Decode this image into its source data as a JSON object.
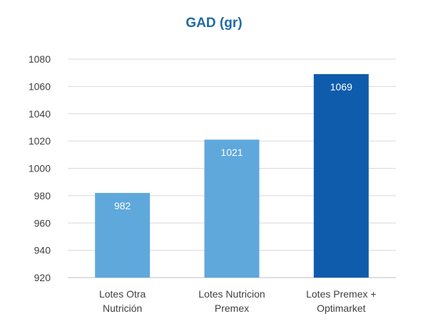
{
  "chart_data": {
    "type": "bar",
    "title": "GAD (gr)",
    "categories": [
      [
        "Lotes Otra",
        "Nutrición"
      ],
      [
        "Lotes Nutricion",
        "Premex"
      ],
      [
        "Lotes Premex +",
        "Optimarket"
      ]
    ],
    "values": [
      982,
      1021,
      1069
    ],
    "data_labels": [
      "982",
      "1021",
      "1069"
    ],
    "bar_colors": [
      "#5fa8dc",
      "#5fa8dc",
      "#0f5cad"
    ],
    "ylim": [
      920,
      1080
    ],
    "yticks": [
      920,
      940,
      960,
      980,
      1000,
      1020,
      1040,
      1060,
      1080
    ],
    "xlabel": "",
    "ylabel": "",
    "grid": true,
    "legend": "none"
  }
}
